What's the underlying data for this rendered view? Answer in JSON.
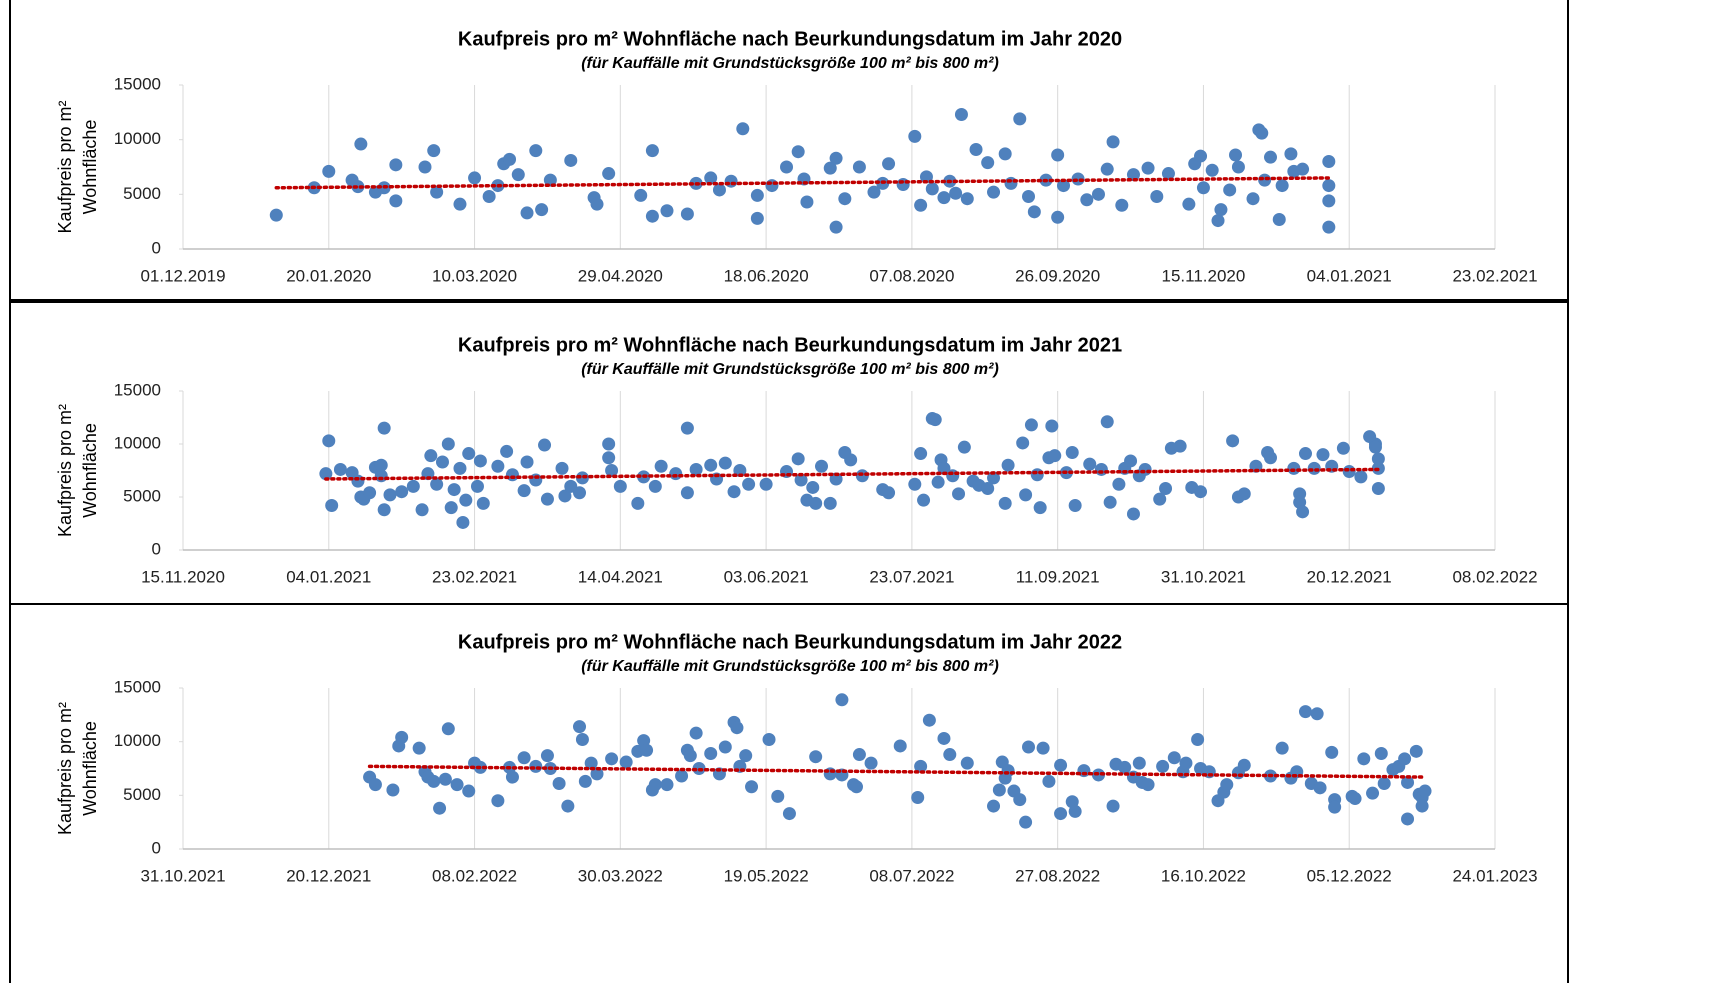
{
  "chart_data": [
    {
      "type": "scatter",
      "title": "Kaufpreis pro m² Wohnfläche nach Beurkundungsdatum im Jahr 2020",
      "subtitle": "(für Kauffälle mit Grundstücksgröße 100 m² bis 800 m²)",
      "ylabel": [
        "Kaufpreis pro m²",
        "Wohnfläche"
      ],
      "color": "#4f81bd",
      "grid": "x",
      "xlim": [
        "01.12.2019",
        "23.02.2021"
      ],
      "xticks": [
        "01.12.2019",
        "20.01.2020",
        "10.03.2020",
        "29.04.2020",
        "18.06.2020",
        "07.08.2020",
        "26.09.2020",
        "15.11.2020",
        "04.01.2021",
        "23.02.2021"
      ],
      "ylim": [
        0,
        15000
      ],
      "yticks": [
        0,
        5000,
        10000,
        15000
      ],
      "x": [
        "02.01.2020",
        "15.01.2020",
        "20.01.2020",
        "28.01.2020",
        "30.01.2020",
        "31.01.2020",
        "05.02.2020",
        "08.02.2020",
        "12.02.2020",
        "12.02.2020",
        "22.02.2020",
        "25.02.2020",
        "26.02.2020",
        "05.03.2020",
        "10.03.2020",
        "15.03.2020",
        "18.03.2020",
        "20.03.2020",
        "22.03.2020",
        "25.03.2020",
        "28.03.2020",
        "31.03.2020",
        "02.04.2020",
        "05.04.2020",
        "12.04.2020",
        "20.04.2020",
        "21.04.2020",
        "25.04.2020",
        "06.05.2020",
        "10.05.2020",
        "10.05.2020",
        "15.05.2020",
        "22.05.2020",
        "25.05.2020",
        "30.05.2020",
        "02.06.2020",
        "06.06.2020",
        "10.06.2020",
        "15.06.2020",
        "15.06.2020",
        "20.06.2020",
        "25.06.2020",
        "29.06.2020",
        "01.07.2020",
        "02.07.2020",
        "10.07.2020",
        "12.07.2020",
        "12.07.2020",
        "15.07.2020",
        "20.07.2020",
        "25.07.2020",
        "28.07.2020",
        "30.07.2020",
        "04.08.2020",
        "08.08.2020",
        "10.08.2020",
        "12.08.2020",
        "14.08.2020",
        "18.08.2020",
        "20.08.2020",
        "22.08.2020",
        "24.08.2020",
        "26.08.2020",
        "29.08.2020",
        "02.09.2020",
        "04.09.2020",
        "08.09.2020",
        "10.09.2020",
        "13.09.2020",
        "16.09.2020",
        "18.09.2020",
        "22.09.2020",
        "26.09.2020",
        "26.09.2020",
        "28.09.2020",
        "03.10.2020",
        "06.10.2020",
        "10.10.2020",
        "13.10.2020",
        "15.10.2020",
        "18.10.2020",
        "22.10.2020",
        "27.10.2020",
        "30.10.2020",
        "03.11.2020",
        "10.11.2020",
        "12.11.2020",
        "14.11.2020",
        "15.11.2020",
        "18.11.2020",
        "20.11.2020",
        "21.11.2020",
        "24.11.2020",
        "26.11.2020",
        "27.11.2020",
        "02.12.2020",
        "04.12.2020",
        "05.12.2020",
        "06.12.2020",
        "08.12.2020",
        "11.12.2020",
        "12.12.2020",
        "15.12.2020",
        "16.12.2020",
        "19.12.2020",
        "28.12.2020",
        "28.12.2020",
        "28.12.2020",
        "28.12.2020"
      ],
      "values": [
        3100,
        5600,
        7100,
        6300,
        5700,
        9600,
        5200,
        5600,
        7700,
        4400,
        7500,
        9000,
        5200,
        4100,
        6500,
        4800,
        5800,
        7800,
        8200,
        6800,
        3300,
        9000,
        3600,
        6300,
        8100,
        4700,
        4100,
        6900,
        4900,
        3000,
        9000,
        3500,
        3200,
        6000,
        6500,
        5400,
        6200,
        11000,
        2800,
        4900,
        5800,
        7500,
        8900,
        6400,
        4300,
        7400,
        2000,
        8300,
        4600,
        7500,
        5200,
        6000,
        7800,
        5900,
        10300,
        4000,
        6600,
        5500,
        4700,
        6200,
        5100,
        12300,
        4600,
        9100,
        7900,
        5200,
        8700,
        6000,
        11900,
        4800,
        3400,
        6300,
        2900,
        8600,
        5800,
        6400,
        4500,
        5000,
        7300,
        9800,
        4000,
        6800,
        7400,
        4800,
        6900,
        4100,
        7800,
        8500,
        5600,
        7200,
        2600,
        3600,
        5400,
        8600,
        7500,
        4600,
        10900,
        10600,
        6300,
        8400,
        2700,
        5800,
        8700,
        7100,
        7300,
        2000,
        4400,
        5800,
        8000
      ],
      "trendline": {
        "color": "#c00000",
        "x": [
          "02.01.2020",
          "28.12.2020"
        ],
        "values": [
          5600,
          6500
        ]
      }
    },
    {
      "type": "scatter",
      "title": "Kaufpreis pro m² Wohnfläche nach Beurkundungsdatum im Jahr 2021",
      "subtitle": "(für Kauffälle mit Grundstücksgröße 100 m² bis 800 m²)",
      "ylabel": [
        "Kaufpreis pro m²",
        "Wohnfläche"
      ],
      "color": "#4f81bd",
      "grid": "x",
      "xlim": [
        "15.11.2020",
        "08.02.2022"
      ],
      "xticks": [
        "15.11.2020",
        "04.01.2021",
        "23.02.2021",
        "14.04.2021",
        "03.06.2021",
        "23.07.2021",
        "11.09.2021",
        "31.10.2021",
        "20.12.2021",
        "08.02.2022"
      ],
      "ylim": [
        0,
        15000
      ],
      "yticks": [
        0,
        5000,
        10000,
        15000
      ],
      "x": [
        "03.01.2021",
        "04.01.2021",
        "05.01.2021",
        "08.01.2021",
        "12.01.2021",
        "14.01.2021",
        "15.01.2021",
        "16.01.2021",
        "18.01.2021",
        "20.01.2021",
        "22.01.2021",
        "22.01.2021",
        "23.01.2021",
        "23.01.2021",
        "25.01.2021",
        "29.01.2021",
        "02.02.2021",
        "05.02.2021",
        "07.02.2021",
        "08.02.2021",
        "10.02.2021",
        "12.02.2021",
        "14.02.2021",
        "15.02.2021",
        "16.02.2021",
        "18.02.2021",
        "19.02.2021",
        "20.02.2021",
        "21.02.2021",
        "24.02.2021",
        "25.02.2021",
        "26.02.2021",
        "03.03.2021",
        "06.03.2021",
        "08.03.2021",
        "12.03.2021",
        "13.03.2021",
        "16.03.2021",
        "19.03.2021",
        "20.03.2021",
        "25.03.2021",
        "26.03.2021",
        "28.03.2021",
        "31.03.2021",
        "01.04.2021",
        "10.04.2021",
        "10.04.2021",
        "11.04.2021",
        "14.04.2021",
        "20.04.2021",
        "22.04.2021",
        "26.04.2021",
        "28.04.2021",
        "03.05.2021",
        "07.05.2021",
        "07.05.2021",
        "10.05.2021",
        "15.05.2021",
        "17.05.2021",
        "20.05.2021",
        "23.05.2021",
        "25.05.2021",
        "28.05.2021",
        "03.06.2021",
        "10.06.2021",
        "14.06.2021",
        "15.06.2021",
        "17.06.2021",
        "19.06.2021",
        "20.06.2021",
        "22.06.2021",
        "25.06.2021",
        "27.06.2021",
        "30.06.2021",
        "02.07.2021",
        "06.07.2021",
        "13.07.2021",
        "15.07.2021",
        "24.07.2021",
        "26.07.2021",
        "27.07.2021",
        "30.07.2021",
        "31.07.2021",
        "01.08.2021",
        "02.08.2021",
        "03.08.2021",
        "06.08.2021",
        "08.08.2021",
        "10.08.2021",
        "13.08.2021",
        "15.08.2021",
        "18.08.2021",
        "20.08.2021",
        "24.08.2021",
        "25.08.2021",
        "30.08.2021",
        "31.08.2021",
        "02.09.2021",
        "04.09.2021",
        "05.09.2021",
        "08.09.2021",
        "09.09.2021",
        "10.09.2021",
        "14.09.2021",
        "16.09.2021",
        "17.09.2021",
        "22.09.2021",
        "26.09.2021",
        "28.09.2021",
        "29.09.2021",
        "02.10.2021",
        "04.10.2021",
        "06.10.2021",
        "07.10.2021",
        "09.10.2021",
        "11.10.2021",
        "16.10.2021",
        "18.10.2021",
        "20.10.2021",
        "23.10.2021",
        "27.10.2021",
        "30.10.2021",
        "10.11.2021",
        "12.11.2021",
        "14.11.2021",
        "18.11.2021",
        "22.11.2021",
        "23.11.2021",
        "01.12.2021",
        "03.12.2021",
        "03.12.2021",
        "04.12.2021",
        "05.12.2021",
        "08.12.2021",
        "11.12.2021",
        "14.12.2021",
        "18.12.2021",
        "20.12.2021",
        "24.12.2021",
        "27.12.2021",
        "29.12.2021",
        "29.12.2021",
        "30.12.2021",
        "30.12.2021",
        "30.12.2021"
      ],
      "values": [
        7200,
        10300,
        4200,
        7600,
        7300,
        6500,
        5000,
        4800,
        5400,
        7800,
        7000,
        8000,
        11500,
        3800,
        5200,
        5500,
        6000,
        3800,
        7200,
        8900,
        6200,
        8300,
        10000,
        4000,
        5700,
        7700,
        2600,
        4700,
        9100,
        6000,
        8400,
        4400,
        7900,
        9300,
        7100,
        5600,
        8300,
        6600,
        9900,
        4800,
        7700,
        5100,
        6000,
        5400,
        6800,
        10000,
        8700,
        7500,
        6000,
        4400,
        6900,
        6000,
        7900,
        7200,
        11500,
        5400,
        7600,
        8000,
        6700,
        8200,
        5500,
        7500,
        6200,
        6200,
        7400,
        8600,
        6600,
        4700,
        5900,
        4400,
        7900,
        4400,
        6700,
        9200,
        8500,
        7000,
        5700,
        5400,
        6200,
        9100,
        4700,
        12400,
        12300,
        6400,
        8500,
        7700,
        7000,
        5300,
        9700,
        6500,
        6100,
        5800,
        6800,
        4400,
        8000,
        10100,
        5200,
        11800,
        7100,
        4000,
        8700,
        11700,
        8900,
        7300,
        9200,
        4200,
        8100,
        7600,
        12100,
        4500,
        6200,
        7700,
        8400,
        3400,
        7000,
        7600,
        4800,
        5800,
        9600,
        9800,
        5900,
        5500,
        10300,
        5000,
        5300,
        7900,
        9200,
        8700,
        7700,
        5300,
        4500,
        3600,
        9100,
        7700,
        9000,
        7900,
        9600,
        7400,
        6900,
        10700,
        10000,
        9700,
        7700,
        5800,
        8600
      ],
      "trendline": {
        "color": "#c00000",
        "x": [
          "03.01.2021",
          "30.12.2021"
        ],
        "values": [
          6700,
          7600
        ]
      }
    },
    {
      "type": "scatter",
      "title": "Kaufpreis pro m² Wohnfläche nach Beurkundungsdatum im Jahr 2022",
      "subtitle": "(für Kauffälle mit Grundstücksgröße 100 m² bis 800 m²)",
      "ylabel": [
        "Kaufpreis pro m²",
        "Wohnfläche"
      ],
      "color": "#4f81bd",
      "grid": "x",
      "xlim": [
        "31.10.2021",
        "24.01.2023"
      ],
      "xticks": [
        "31.10.2021",
        "20.12.2021",
        "08.02.2022",
        "30.03.2022",
        "19.05.2022",
        "08.07.2022",
        "27.08.2022",
        "16.10.2022",
        "05.12.2022",
        "24.01.2023"
      ],
      "ylim": [
        0,
        15000
      ],
      "yticks": [
        0,
        5000,
        10000,
        15000
      ],
      "x": [
        "03.01.2022",
        "05.01.2022",
        "11.01.2022",
        "13.01.2022",
        "14.01.2022",
        "20.01.2022",
        "22.01.2022",
        "23.01.2022",
        "25.01.2022",
        "27.01.2022",
        "29.01.2022",
        "30.01.2022",
        "02.02.2022",
        "06.02.2022",
        "08.02.2022",
        "10.02.2022",
        "16.02.2022",
        "20.02.2022",
        "21.02.2022",
        "25.02.2022",
        "01.03.2022",
        "05.03.2022",
        "06.03.2022",
        "09.03.2022",
        "12.03.2022",
        "16.03.2022",
        "17.03.2022",
        "18.03.2022",
        "20.03.2022",
        "22.03.2022",
        "27.03.2022",
        "01.04.2022",
        "05.04.2022",
        "07.04.2022",
        "08.04.2022",
        "10.04.2022",
        "11.04.2022",
        "15.04.2022",
        "20.04.2022",
        "22.04.2022",
        "23.04.2022",
        "25.04.2022",
        "26.04.2022",
        "30.04.2022",
        "03.05.2022",
        "05.05.2022",
        "08.05.2022",
        "09.05.2022",
        "10.05.2022",
        "12.05.2022",
        "14.05.2022",
        "20.05.2022",
        "23.05.2022",
        "27.05.2022",
        "05.06.2022",
        "10.06.2022",
        "14.06.2022",
        "14.06.2022",
        "18.06.2022",
        "19.06.2022",
        "20.06.2022",
        "24.06.2022",
        "04.07.2022",
        "10.07.2022",
        "11.07.2022",
        "14.07.2022",
        "19.07.2022",
        "21.07.2022",
        "27.07.2022",
        "05.08.2022",
        "07.08.2022",
        "08.08.2022",
        "09.08.2022",
        "10.08.2022",
        "12.08.2022",
        "14.08.2022",
        "16.08.2022",
        "17.08.2022",
        "22.08.2022",
        "24.08.2022",
        "28.08.2022",
        "28.08.2022",
        "01.09.2022",
        "02.09.2022",
        "05.09.2022",
        "10.09.2022",
        "15.09.2022",
        "16.09.2022",
        "19.09.2022",
        "22.09.2022",
        "24.09.2022",
        "25.09.2022",
        "27.09.2022",
        "02.10.2022",
        "06.10.2022",
        "09.10.2022",
        "10.10.2022",
        "14.10.2022",
        "15.10.2022",
        "18.10.2022",
        "21.10.2022",
        "23.10.2022",
        "24.10.2022",
        "28.10.2022",
        "30.10.2022",
        "08.11.2022",
        "12.11.2022",
        "15.11.2022",
        "17.11.2022",
        "20.11.2022",
        "22.11.2022",
        "24.11.2022",
        "25.11.2022",
        "29.11.2022",
        "30.11.2022",
        "30.11.2022",
        "06.12.2022",
        "07.12.2022",
        "10.12.2022",
        "13.12.2022",
        "16.12.2022",
        "17.12.2022",
        "20.12.2022",
        "22.12.2022",
        "24.12.2022",
        "25.12.2022",
        "25.12.2022",
        "28.12.2022",
        "29.12.2022",
        "30.12.2022",
        "30.12.2022",
        "31.12.2022"
      ],
      "values": [
        6700,
        6000,
        5500,
        9600,
        10400,
        9400,
        7200,
        6700,
        6300,
        3800,
        6500,
        11200,
        6000,
        5400,
        8000,
        7600,
        4500,
        7600,
        6700,
        8500,
        7700,
        8700,
        7500,
        6100,
        4000,
        11400,
        10200,
        6300,
        8000,
        7000,
        8400,
        8100,
        9100,
        10100,
        9200,
        5500,
        6000,
        6000,
        6800,
        9200,
        8700,
        10800,
        7500,
        8900,
        7000,
        9500,
        11800,
        11300,
        7700,
        8700,
        5800,
        10200,
        4900,
        3300,
        8600,
        7000,
        13900,
        6900,
        6000,
        5800,
        8800,
        8000,
        9600,
        4800,
        7700,
        12000,
        10300,
        8800,
        8000,
        4000,
        5500,
        8100,
        6600,
        7300,
        5400,
        4600,
        2500,
        9500,
        9400,
        6300,
        7800,
        3300,
        4400,
        3500,
        7300,
        6900,
        4000,
        7900,
        7600,
        6700,
        8000,
        6200,
        6000,
        7700,
        8500,
        7200,
        8000,
        10200,
        7500,
        7200,
        4500,
        5300,
        6000,
        7100,
        7800,
        6800,
        9400,
        6600,
        7200,
        12800,
        6100,
        12600,
        5700,
        9000,
        4600,
        3900,
        4900,
        4700,
        8400,
        5200,
        8900,
        6100,
        7400,
        7700,
        8400,
        2800,
        6200,
        9100,
        5100,
        4800,
        4000,
        5400
      ],
      "trendline": {
        "color": "#c00000",
        "x": [
          "03.01.2022",
          "31.12.2022"
        ],
        "values": [
          7700,
          6700
        ]
      }
    }
  ]
}
